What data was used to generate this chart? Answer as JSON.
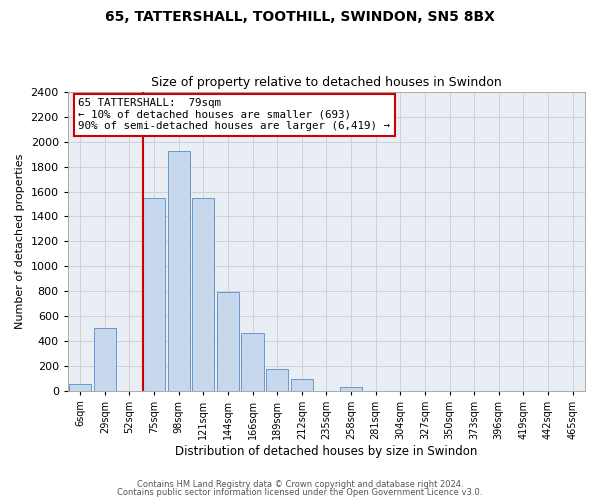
{
  "title": "65, TATTERSHALL, TOOTHILL, SWINDON, SN5 8BX",
  "subtitle": "Size of property relative to detached houses in Swindon",
  "xlabel": "Distribution of detached houses by size in Swindon",
  "ylabel": "Number of detached properties",
  "bin_labels": [
    "6sqm",
    "29sqm",
    "52sqm",
    "75sqm",
    "98sqm",
    "121sqm",
    "144sqm",
    "166sqm",
    "189sqm",
    "212sqm",
    "235sqm",
    "258sqm",
    "281sqm",
    "304sqm",
    "327sqm",
    "350sqm",
    "373sqm",
    "396sqm",
    "419sqm",
    "442sqm",
    "465sqm"
  ],
  "bin_values": [
    50,
    500,
    0,
    1550,
    1930,
    1550,
    790,
    460,
    175,
    90,
    0,
    30,
    0,
    0,
    0,
    0,
    0,
    0,
    0,
    0,
    0
  ],
  "bar_color": "#c8d8ec",
  "bar_edge_color": "#6699cc",
  "vline_color": "#cc0000",
  "vline_at_index": 3,
  "annotation_line1": "65 TATTERSHALL:  79sqm",
  "annotation_line2": "← 10% of detached houses are smaller (693)",
  "annotation_line3": "90% of semi-detached houses are larger (6,419) →",
  "annotation_box_facecolor": "#ffffff",
  "annotation_box_edgecolor": "#cc0000",
  "ylim": [
    0,
    2400
  ],
  "yticks": [
    0,
    200,
    400,
    600,
    800,
    1000,
    1200,
    1400,
    1600,
    1800,
    2000,
    2200,
    2400
  ],
  "footer_line1": "Contains HM Land Registry data © Crown copyright and database right 2024.",
  "footer_line2": "Contains public sector information licensed under the Open Government Licence v3.0.",
  "bg_color": "#ffffff",
  "plot_bg_color": "#e8eef4"
}
